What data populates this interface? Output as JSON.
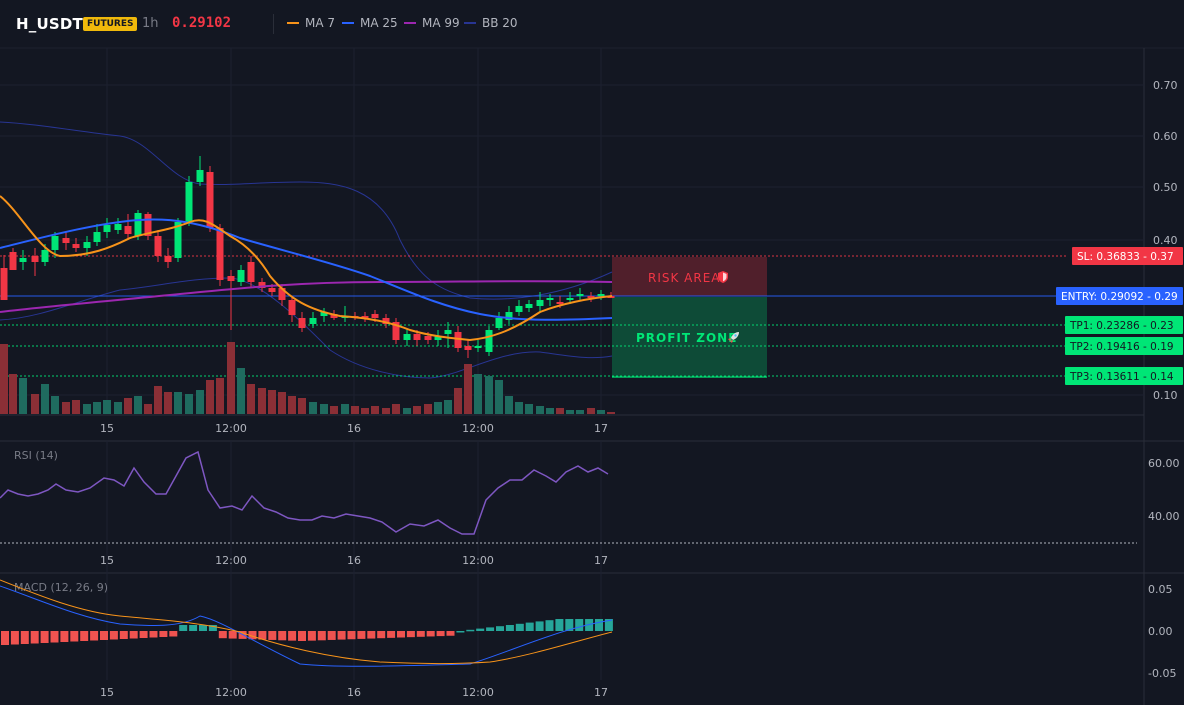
{
  "header": {
    "symbol": "H_USDT",
    "market_badge": "FUTURES",
    "interval": "1h",
    "last_price": "0.29102"
  },
  "indicators_legend": [
    {
      "label": "MA 7",
      "color": "#f7931a"
    },
    {
      "label": "MA 25",
      "color": "#2962ff"
    },
    {
      "label": "MA 99",
      "color": "#9c27b0"
    },
    {
      "label": "BB 20",
      "color": "#283593"
    }
  ],
  "price_axis": {
    "ticks": [
      "0.70",
      "0.60",
      "0.50",
      "0.40",
      "0.10"
    ]
  },
  "time_axis": {
    "labels": [
      "15",
      "12:00",
      "16",
      "12:00",
      "17"
    ]
  },
  "trade_levels": {
    "sl": {
      "label": "SL: 0.36833",
      "short": "0.37",
      "color": "#f23645"
    },
    "entry": {
      "label": "ENTRY: 0.29092",
      "short": "0.29",
      "color": "#2962ff"
    },
    "tp1": {
      "label": "TP1: 0.23286",
      "short": "0.23",
      "color": "#00e676"
    },
    "tp2": {
      "label": "TP2: 0.19416",
      "short": "0.19",
      "color": "#00e676"
    },
    "tp3": {
      "label": "TP3: 0.13611",
      "short": "0.14",
      "color": "#00e676"
    }
  },
  "zones": {
    "risk_label": "RISK AREA",
    "profit_label": "PROFIT ZONE",
    "risk_icon": "shield-icon",
    "profit_icon": "rocket-icon"
  },
  "rsi_panel": {
    "title": "RSI (14)",
    "ticks": [
      "60.00",
      "40.00"
    ],
    "line_color": "#7e57c2"
  },
  "macd_panel": {
    "title": "MACD (12, 26, 9)",
    "ticks": [
      "0.05",
      "0.00",
      "-0.05"
    ]
  },
  "colors": {
    "up": "#26a69a",
    "down": "#ef5350",
    "up_bright": "#00e676",
    "down_bright": "#f23645",
    "background": "#131722"
  }
}
